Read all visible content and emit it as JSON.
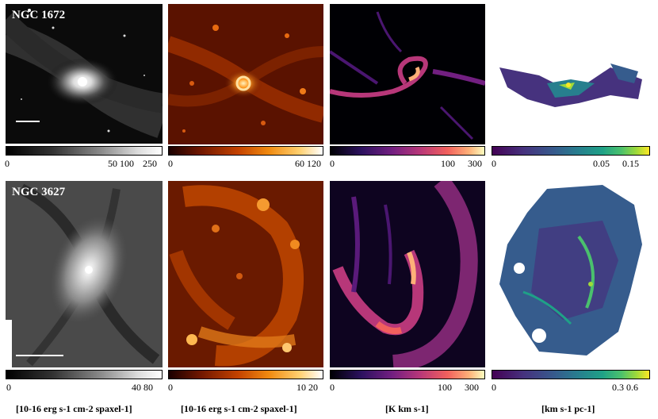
{
  "rows": [
    {
      "galaxy": "NGC 1672",
      "colorbars": [
        {
          "ticks": [
            "0",
            "50 100",
            "250"
          ]
        },
        {
          "ticks": [
            "0",
            "60 120"
          ]
        },
        {
          "ticks": [
            "0",
            "100",
            "300"
          ]
        },
        {
          "ticks": [
            "0",
            "0.05",
            "0.15"
          ]
        }
      ]
    },
    {
      "galaxy": "NGC 3627",
      "colorbars": [
        {
          "ticks": [
            "0",
            "40 80"
          ]
        },
        {
          "ticks": [
            "0",
            "10 20"
          ]
        },
        {
          "ticks": [
            "0",
            "100",
            "300"
          ]
        },
        {
          "ticks": [
            "0",
            "0.3 0.6"
          ]
        }
      ]
    }
  ],
  "units": [
    "[10-16 erg s-1 cm-2 spaxel-1]",
    "[10-16 erg s-1 cm-2 spaxel-1]",
    "[K km s-1]",
    "[km s-1 pc-1]"
  ],
  "colormaps": [
    "gray",
    "hot",
    "magma",
    "viridis"
  ]
}
